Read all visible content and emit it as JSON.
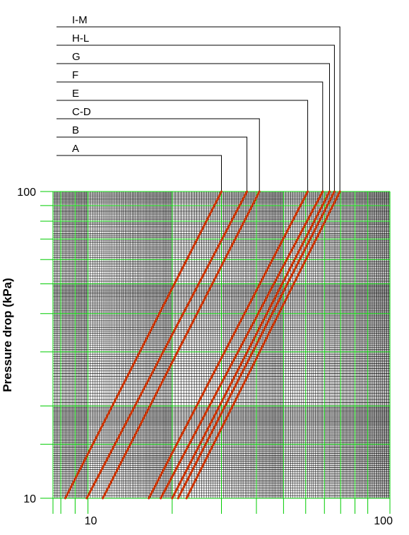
{
  "chart_data": {
    "type": "line",
    "title": "",
    "xlabel": "",
    "ylabel": "Pressure drop (kPa)",
    "x_scale": "log",
    "y_scale": "log",
    "xlim": [
      7.5,
      120
    ],
    "ylim": [
      10,
      100
    ],
    "grid": true,
    "grid_color": "#00cc00",
    "line_color": "#cc3300",
    "x_tick_labels": [
      {
        "value": 10,
        "label": "10"
      },
      {
        "value": 100,
        "label": "100"
      }
    ],
    "y_tick_labels": [
      {
        "value": 10,
        "label": "10"
      },
      {
        "value": 100,
        "label": "100"
      }
    ],
    "series": [
      {
        "name": "A",
        "x": [
          8.3,
          30.0
        ],
        "y": [
          10,
          100
        ]
      },
      {
        "name": "B",
        "x": [
          9.9,
          37.0
        ],
        "y": [
          10,
          100
        ]
      },
      {
        "name": "C-D",
        "x": [
          11.3,
          41.0
        ],
        "y": [
          10,
          100
        ]
      },
      {
        "name": "E",
        "x": [
          16.5,
          61.0
        ],
        "y": [
          10,
          100
        ]
      },
      {
        "name": "F",
        "x": [
          18.2,
          69.0
        ],
        "y": [
          10,
          100
        ]
      },
      {
        "name": "G",
        "x": [
          20.0,
          73.0
        ],
        "y": [
          10,
          100
        ]
      },
      {
        "name": "H-L",
        "x": [
          21.0,
          76.0
        ],
        "y": [
          10,
          100
        ]
      },
      {
        "name": "I-M",
        "x": [
          22.5,
          79.5
        ],
        "y": [
          10,
          100
        ]
      }
    ]
  }
}
